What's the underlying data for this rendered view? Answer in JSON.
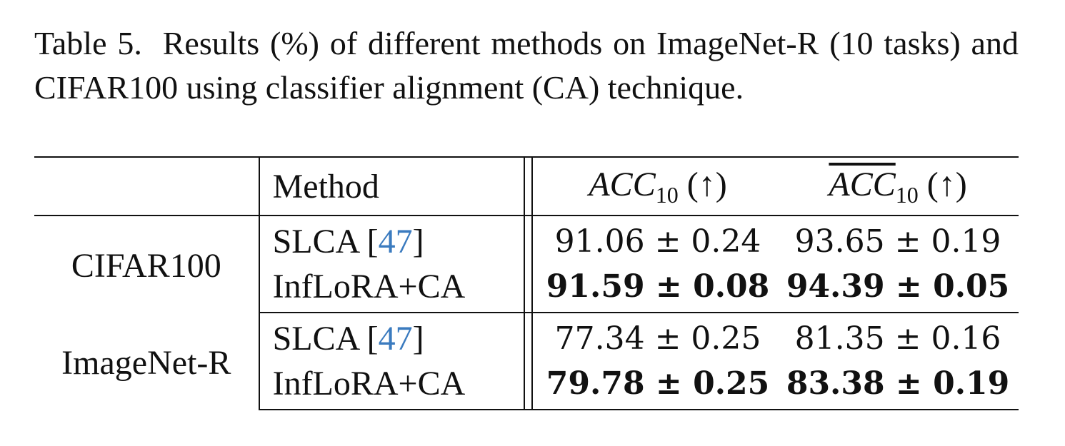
{
  "caption": {
    "label": "Table 5.",
    "text": "Results (%) of different methods on ImageNet-R (10 tasks) and CIFAR100 using classifier alignment (CA) technique."
  },
  "table": {
    "headers": {
      "method": "Method",
      "acc_main": "ACC",
      "acc_sub": "10",
      "acc_arrow": "(↑)",
      "accbar_main": "ACC",
      "accbar_sub": "10",
      "accbar_arrow": "(↑)"
    },
    "groups": [
      {
        "dataset": "CIFAR100",
        "rows": [
          {
            "method": "SLCA [",
            "cite": "47",
            "method_close": "]",
            "acc": "91.06 ± 0.24",
            "accbar": "93.65 ± 0.19",
            "bold": false
          },
          {
            "method": "InfLoRA+CA",
            "acc": "91.59 ± 0.08",
            "accbar": "94.39 ± 0.05",
            "bold": true
          }
        ]
      },
      {
        "dataset": "ImageNet-R",
        "rows": [
          {
            "method": "SLCA [",
            "cite": "47",
            "method_close": "]",
            "acc": "77.34 ± 0.25",
            "accbar": "81.35 ± 0.16",
            "bold": false
          },
          {
            "method": "InfLoRA+CA",
            "acc": "79.78 ± 0.25",
            "accbar": "83.38 ± 0.19",
            "bold": true
          }
        ]
      }
    ],
    "colors": {
      "citation": "#3b7bbf"
    }
  }
}
